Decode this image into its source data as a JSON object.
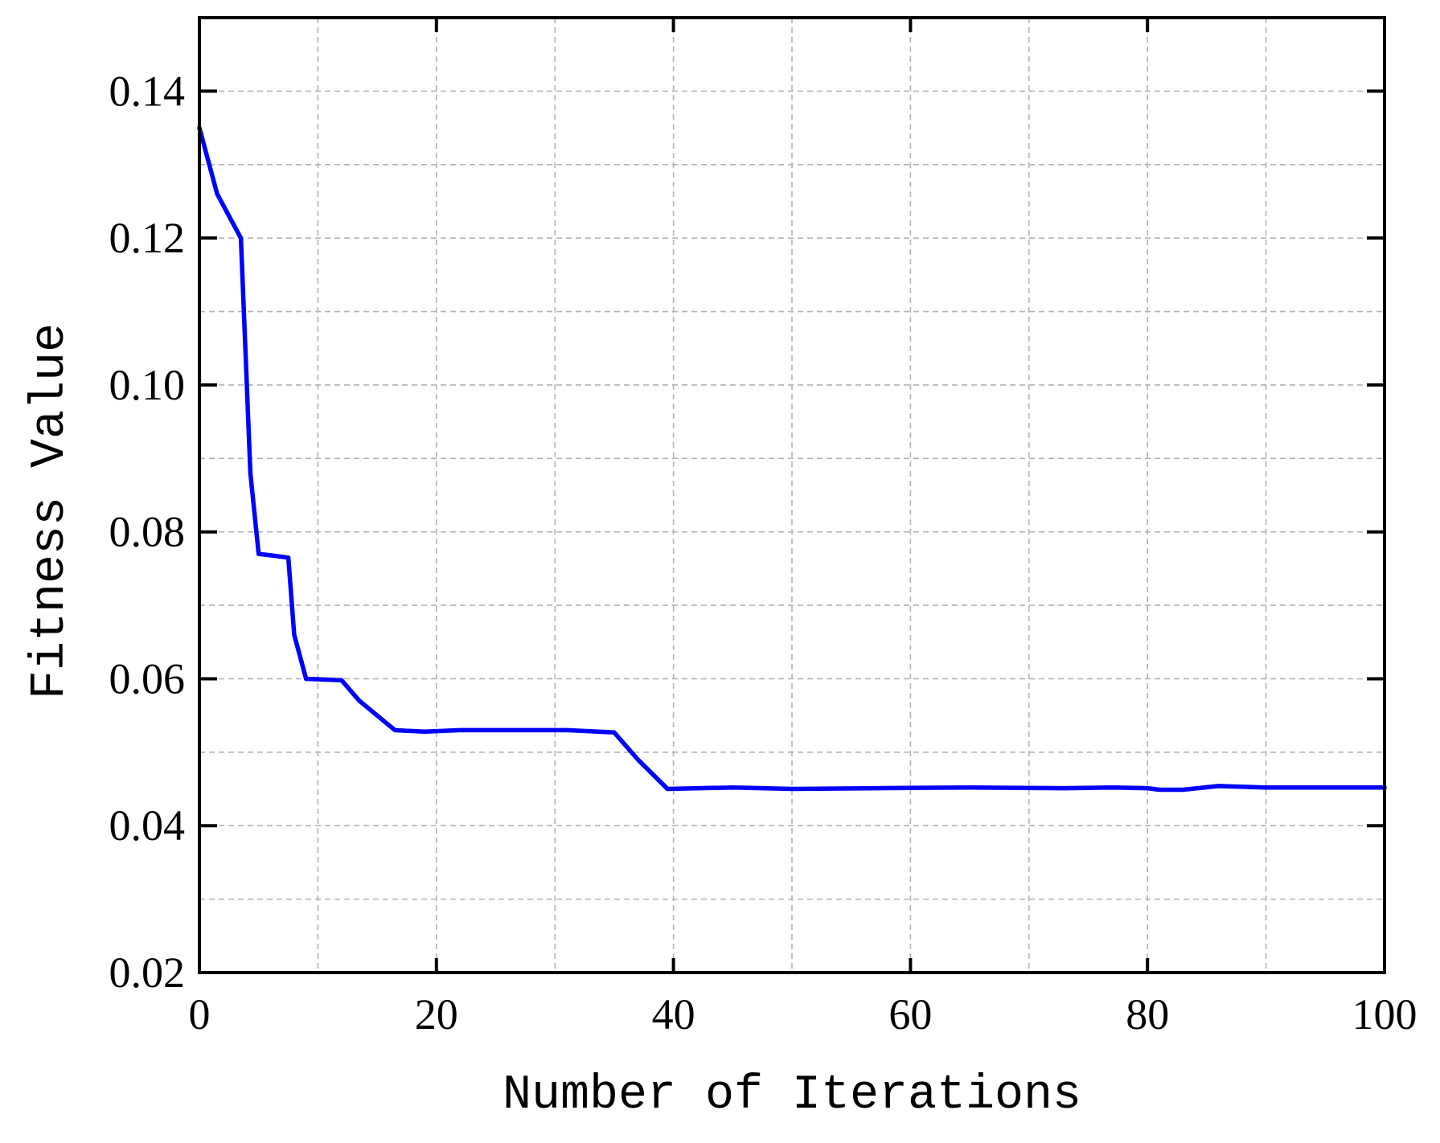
{
  "chart_data": {
    "type": "line",
    "title": "",
    "xlabel": "Number of Iterations",
    "ylabel": "Fitness Value",
    "xlim": [
      0,
      100
    ],
    "ylim": [
      0.02,
      0.15
    ],
    "xticks": [
      0,
      20,
      40,
      60,
      80,
      100
    ],
    "xtick_labels": [
      "0",
      "20",
      "40",
      "60",
      "80",
      "100"
    ],
    "yticks": [
      0.02,
      0.04,
      0.06,
      0.08,
      0.1,
      0.12,
      0.14
    ],
    "ytick_labels": [
      "0.02",
      "0.04",
      "0.06",
      "0.08",
      "0.10",
      "0.12",
      "0.14"
    ],
    "grid": true,
    "grid_minor": true,
    "series": [
      {
        "color": "#0000ff",
        "x": [
          0,
          1.5,
          3.5,
          4,
          4.3,
          5,
          6,
          7.5,
          8,
          9,
          12,
          13.5,
          16.5,
          19,
          22,
          27,
          31,
          35,
          37,
          39.5,
          45,
          50,
          57,
          65,
          73,
          77,
          80,
          81,
          83,
          86,
          90,
          100
        ],
        "y": [
          0.135,
          0.126,
          0.12,
          0.1,
          0.088,
          0.077,
          0.0768,
          0.0765,
          0.066,
          0.06,
          0.0598,
          0.057,
          0.053,
          0.0528,
          0.053,
          0.053,
          0.053,
          0.0527,
          0.049,
          0.045,
          0.0452,
          0.045,
          0.0451,
          0.0452,
          0.0451,
          0.0452,
          0.0451,
          0.0449,
          0.0449,
          0.0454,
          0.0452,
          0.0452
        ]
      }
    ]
  }
}
